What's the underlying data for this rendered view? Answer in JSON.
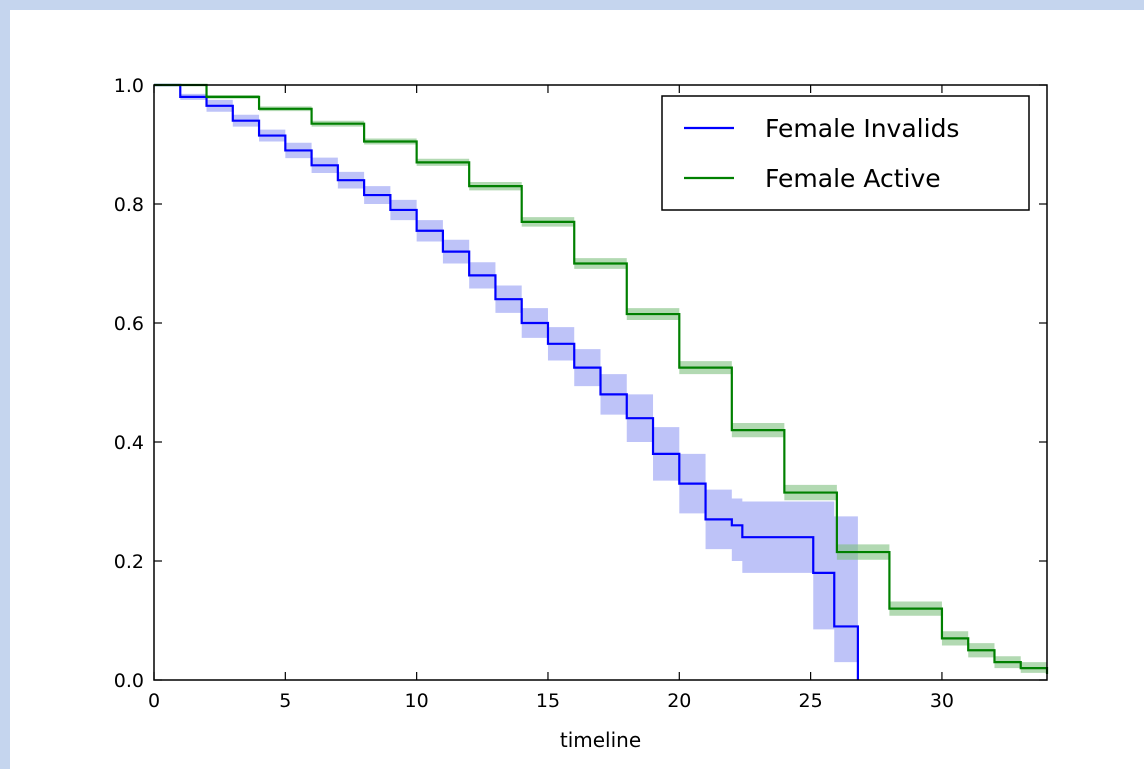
{
  "chart_data": {
    "type": "line",
    "title": "",
    "xlabel": "timeline",
    "ylabel": "",
    "xlim": [
      0,
      34
    ],
    "ylim": [
      0,
      1
    ],
    "xticks": [
      0,
      5,
      10,
      15,
      20,
      25,
      30
    ],
    "xtick_labels": [
      "0",
      "5",
      "10",
      "15",
      "20",
      "25",
      "30"
    ],
    "yticks": [
      0,
      0.2,
      0.4,
      0.6,
      0.8,
      1.0
    ],
    "ytick_labels": [
      "0.0",
      "0.2",
      "0.4",
      "0.6",
      "0.8",
      "1.0"
    ],
    "legend_position": "top-right",
    "grid": false,
    "series": [
      {
        "name": "Female Invalids",
        "color": "#0000ff",
        "band_color": "#b3b8f7",
        "x": [
          0,
          1,
          2,
          3,
          4,
          5,
          6,
          7,
          8,
          9,
          10,
          11,
          12,
          13,
          14,
          15,
          16,
          17,
          18,
          19,
          20,
          21,
          22,
          22.4,
          25.1,
          25.9,
          26.8
        ],
        "y": [
          1.0,
          0.98,
          0.965,
          0.94,
          0.915,
          0.89,
          0.865,
          0.84,
          0.815,
          0.79,
          0.755,
          0.72,
          0.68,
          0.64,
          0.6,
          0.565,
          0.525,
          0.48,
          0.44,
          0.38,
          0.33,
          0.27,
          0.26,
          0.24,
          0.18,
          0.09,
          0.0
        ],
        "lower": [
          1.0,
          0.975,
          0.955,
          0.93,
          0.905,
          0.877,
          0.852,
          0.826,
          0.8,
          0.773,
          0.737,
          0.7,
          0.658,
          0.617,
          0.575,
          0.537,
          0.494,
          0.446,
          0.4,
          0.335,
          0.28,
          0.22,
          0.2,
          0.18,
          0.085,
          0.03,
          0.0
        ],
        "upper": [
          1.0,
          0.985,
          0.975,
          0.95,
          0.925,
          0.903,
          0.878,
          0.854,
          0.83,
          0.807,
          0.773,
          0.74,
          0.702,
          0.663,
          0.625,
          0.593,
          0.556,
          0.514,
          0.48,
          0.425,
          0.38,
          0.32,
          0.305,
          0.3,
          0.3,
          0.275,
          0.275
        ]
      },
      {
        "name": "Female Active",
        "color": "#008000",
        "band_color": "#7fbf7f",
        "x": [
          0,
          2,
          4,
          6,
          8,
          10,
          12,
          14,
          16,
          18,
          20,
          22,
          24,
          26,
          28,
          30,
          31,
          32,
          33,
          34
        ],
        "y": [
          1.0,
          0.98,
          0.96,
          0.935,
          0.905,
          0.87,
          0.83,
          0.77,
          0.7,
          0.615,
          0.525,
          0.42,
          0.315,
          0.215,
          0.12,
          0.07,
          0.05,
          0.03,
          0.02,
          0.01
        ],
        "lower": [
          1.0,
          0.977,
          0.956,
          0.93,
          0.9,
          0.864,
          0.823,
          0.762,
          0.691,
          0.605,
          0.514,
          0.408,
          0.302,
          0.202,
          0.108,
          0.058,
          0.038,
          0.02,
          0.012,
          0.004
        ],
        "upper": [
          1.0,
          0.983,
          0.964,
          0.94,
          0.91,
          0.876,
          0.837,
          0.778,
          0.709,
          0.625,
          0.536,
          0.432,
          0.328,
          0.228,
          0.132,
          0.082,
          0.062,
          0.04,
          0.03,
          0.018
        ]
      }
    ]
  }
}
